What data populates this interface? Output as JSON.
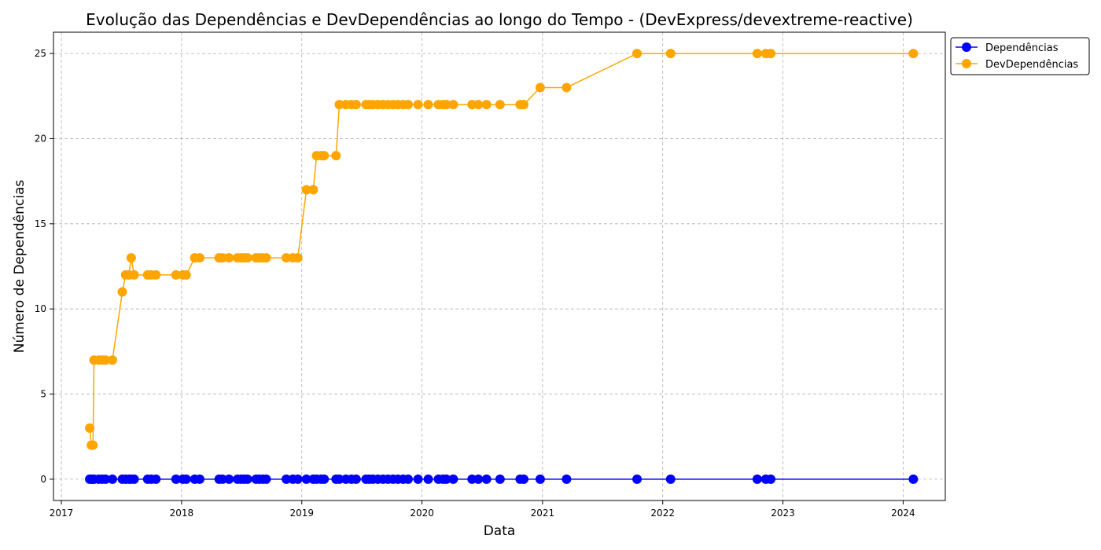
{
  "chart_data": {
    "type": "line",
    "title": "Evolução das Dependências e DevDependências ao longo do Tempo - (DevExpress/devextreme-reactive)",
    "xlabel": "Data",
    "ylabel": "Número de Dependências",
    "xlim": [
      "2016-12-08",
      "2024-05-08"
    ],
    "ylim": [
      -1.25,
      26.25
    ],
    "x_ticks": [
      "2017",
      "2018",
      "2019",
      "2020",
      "2021",
      "2022",
      "2023",
      "2024"
    ],
    "y_ticks": [
      "0",
      "5",
      "10",
      "15",
      "20",
      "25"
    ],
    "grid": true,
    "legend_position": "outside top-right",
    "x": [
      "2017-03-28",
      "2017-04-02",
      "2017-04-07",
      "2017-04-10",
      "2017-04-25",
      "2017-05-05",
      "2017-05-15",
      "2017-06-05",
      "2017-07-05",
      "2017-07-15",
      "2017-07-25",
      "2017-08-01",
      "2017-08-10",
      "2017-09-20",
      "2017-10-01",
      "2017-10-15",
      "2017-12-15",
      "2018-01-05",
      "2018-01-15",
      "2018-02-10",
      "2018-02-25",
      "2018-04-25",
      "2018-05-05",
      "2018-05-25",
      "2018-06-20",
      "2018-07-01",
      "2018-07-10",
      "2018-07-20",
      "2018-08-15",
      "2018-08-25",
      "2018-09-05",
      "2018-09-15",
      "2018-11-15",
      "2018-12-05",
      "2018-12-20",
      "2019-01-15",
      "2019-02-05",
      "2019-02-15",
      "2019-03-01",
      "2019-03-10",
      "2019-04-15",
      "2019-04-25",
      "2019-05-15",
      "2019-06-01",
      "2019-06-15",
      "2019-07-15",
      "2019-07-25",
      "2019-08-05",
      "2019-08-20",
      "2019-09-05",
      "2019-09-20",
      "2019-10-05",
      "2019-10-20",
      "2019-11-05",
      "2019-11-20",
      "2019-12-20",
      "2020-01-20",
      "2020-02-20",
      "2020-03-05",
      "2020-03-15",
      "2020-04-05",
      "2020-06-01",
      "2020-06-20",
      "2020-07-15",
      "2020-08-25",
      "2020-10-25",
      "2020-11-05",
      "2020-12-25",
      "2021-03-15",
      "2021-10-15",
      "2022-01-25",
      "2022-10-15",
      "2022-11-10",
      "2022-11-25",
      "2024-02-01"
    ],
    "series": [
      {
        "name": "Dependências",
        "color": "#0000ff",
        "values": [
          0,
          0,
          0,
          0,
          0,
          0,
          0,
          0,
          0,
          0,
          0,
          0,
          0,
          0,
          0,
          0,
          0,
          0,
          0,
          0,
          0,
          0,
          0,
          0,
          0,
          0,
          0,
          0,
          0,
          0,
          0,
          0,
          0,
          0,
          0,
          0,
          0,
          0,
          0,
          0,
          0,
          0,
          0,
          0,
          0,
          0,
          0,
          0,
          0,
          0,
          0,
          0,
          0,
          0,
          0,
          0,
          0,
          0,
          0,
          0,
          0,
          0,
          0,
          0,
          0,
          0,
          0,
          0,
          0,
          0,
          0,
          0,
          0,
          0,
          0
        ]
      },
      {
        "name": "DevDependências",
        "color": "#ffa500",
        "values": [
          3,
          2,
          2,
          7,
          7,
          7,
          7,
          7,
          11,
          12,
          12,
          13,
          12,
          12,
          12,
          12,
          12,
          12,
          12,
          13,
          13,
          13,
          13,
          13,
          13,
          13,
          13,
          13,
          13,
          13,
          13,
          13,
          13,
          13,
          13,
          17,
          17,
          19,
          19,
          19,
          19,
          22,
          22,
          22,
          22,
          22,
          22,
          22,
          22,
          22,
          22,
          22,
          22,
          22,
          22,
          22,
          22,
          22,
          22,
          22,
          22,
          22,
          22,
          22,
          22,
          22,
          22,
          23,
          23,
          25,
          25,
          25,
          25,
          25,
          25
        ]
      }
    ]
  }
}
